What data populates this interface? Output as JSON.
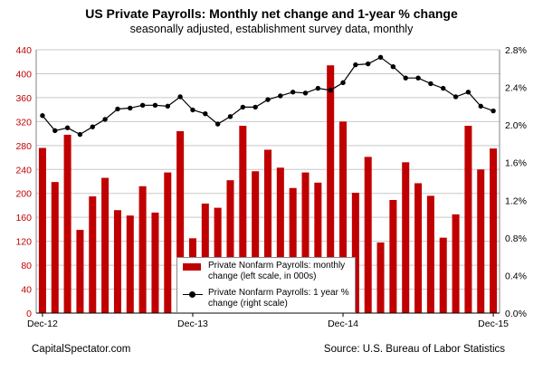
{
  "title": "US Private Payrolls: Monthly net change and 1-year % change",
  "subtitle": "seasonally adjusted, establishment survey data, monthly",
  "footer": {
    "left": "CapitalSpectator.com",
    "right": "Source: U.S. Bureau of Labor Statistics"
  },
  "legend": {
    "bar": "Private Nonfarm Payrolls: monthly change (left scale, in 000s)",
    "line": "Private Nonfarm Payrolls: 1 year % change (right scale)"
  },
  "colors": {
    "bar": "#c00000",
    "line": "#000000",
    "grid": "#c8c8c8",
    "left_axis_labels": "#c00000"
  },
  "chart_data": {
    "type": "bar",
    "x_tick_labels": [
      "Dec-12",
      "Dec-13",
      "Dec-14",
      "Dec-15"
    ],
    "x_tick_index": [
      0,
      12,
      24,
      36
    ],
    "left_axis": {
      "ylim": [
        0,
        440
      ],
      "ticks": [
        0,
        40,
        80,
        120,
        160,
        200,
        240,
        280,
        320,
        360,
        400,
        440
      ]
    },
    "right_axis": {
      "ylim": [
        0,
        2.8
      ],
      "ticks": [
        "0.0%",
        "0.4%",
        "0.8%",
        "1.2%",
        "1.6%",
        "2.0%",
        "2.4%",
        "2.8%"
      ]
    },
    "categories": [
      "Dec-12",
      "Jan-13",
      "Feb-13",
      "Mar-13",
      "Apr-13",
      "May-13",
      "Jun-13",
      "Jul-13",
      "Aug-13",
      "Sep-13",
      "Oct-13",
      "Nov-13",
      "Dec-13",
      "Jan-14",
      "Feb-14",
      "Mar-14",
      "Apr-14",
      "May-14",
      "Jun-14",
      "Jul-14",
      "Aug-14",
      "Sep-14",
      "Oct-14",
      "Nov-14",
      "Dec-14",
      "Jan-15",
      "Feb-15",
      "Mar-15",
      "Apr-15",
      "May-15",
      "Jun-15",
      "Jul-15",
      "Aug-15",
      "Sep-15",
      "Oct-15",
      "Nov-15",
      "Dec-15"
    ],
    "series": [
      {
        "name": "Private Nonfarm Payrolls: monthly change (left scale, in 000s)",
        "type": "bar",
        "axis": "left",
        "values": [
          276,
          219,
          298,
          139,
          195,
          226,
          172,
          163,
          212,
          168,
          235,
          304,
          125,
          183,
          176,
          222,
          313,
          237,
          273,
          243,
          209,
          235,
          218,
          414,
          320,
          201,
          261,
          118,
          189,
          252,
          217,
          196,
          126,
          165,
          313,
          240,
          275
        ]
      },
      {
        "name": "Private Nonfarm Payrolls: 1 year % change (right scale)",
        "type": "line",
        "axis": "right",
        "values": [
          2.1,
          1.94,
          1.97,
          1.9,
          1.98,
          2.06,
          2.17,
          2.18,
          2.21,
          2.21,
          2.2,
          2.3,
          2.16,
          2.12,
          2.01,
          2.09,
          2.19,
          2.19,
          2.27,
          2.31,
          2.35,
          2.34,
          2.39,
          2.37,
          2.45,
          2.64,
          2.65,
          2.72,
          2.62,
          2.5,
          2.5,
          2.44,
          2.39,
          2.3,
          2.35,
          2.2,
          2.15
        ]
      }
    ]
  }
}
